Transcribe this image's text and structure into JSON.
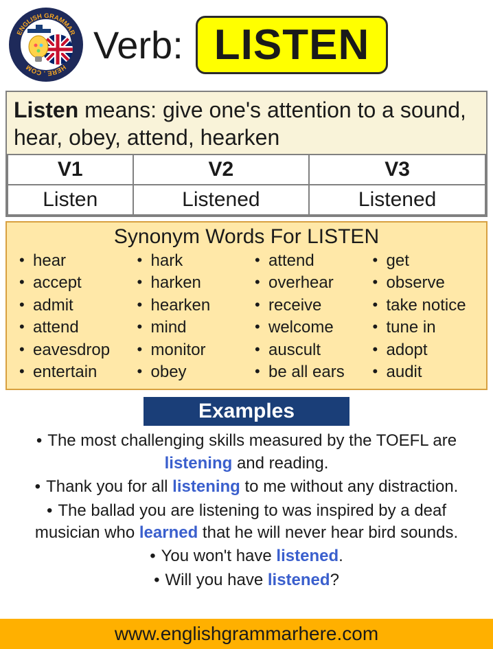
{
  "colors": {
    "page_bg": "#ffffff",
    "verb_box_bg": "#ffff00",
    "verb_box_border": "#2a2a2a",
    "def_box_bg": "#f9f3d9",
    "def_box_border": "#808080",
    "syn_box_bg": "#ffe8a8",
    "syn_box_border": "#d8a040",
    "examples_header_bg": "#1a3e78",
    "examples_header_text": "#ffffff",
    "highlight_text": "#3a5fcd",
    "footer_bg": "#ffb000",
    "text": "#1a1a1a"
  },
  "typography": {
    "font_family": "Arial",
    "verb_label_size": 56,
    "verb_word_size": 62,
    "definition_size": 32,
    "forms_size": 30,
    "synonyms_title_size": 30,
    "synonym_item_size": 24,
    "examples_header_size": 30,
    "example_item_size": 24,
    "footer_size": 28
  },
  "logo": {
    "text_top": "English Grammar",
    "text_bottom": "Here.Com",
    "ring_color": "#1e2a5a",
    "ring_text_color": "#f5a623",
    "flag_bg": "#012169",
    "flag_red": "#C8102E",
    "flag_white": "#ffffff",
    "bulb_yellow": "#ffd24a",
    "cap_color": "#1a3e78"
  },
  "header": {
    "verb_label": "Verb:",
    "verb_word": "LISTEN"
  },
  "definition": {
    "word": "Listen",
    "connector": " means: ",
    "text": "give one's attention to a sound, hear, obey, attend, hearken"
  },
  "forms": {
    "columns": [
      "V1",
      "V2",
      "V3"
    ],
    "values": [
      "Listen",
      "Listened",
      "Listened"
    ]
  },
  "synonyms": {
    "title_prefix": "Synonym Words For ",
    "title_word": "LISTEN",
    "columns": [
      [
        "hear",
        "accept",
        "admit",
        "attend",
        "eavesdrop",
        "entertain"
      ],
      [
        "hark",
        "harken",
        "hearken",
        "mind",
        "monitor",
        "obey"
      ],
      [
        "attend",
        "overhear",
        "receive",
        "welcome",
        "auscult",
        "be all ears"
      ],
      [
        "get",
        "observe",
        "take notice",
        "tune in",
        "adopt",
        "audit"
      ]
    ]
  },
  "examples": {
    "header": "Examples",
    "items": [
      {
        "parts": [
          "The most challenging skills measured by the TOEFL are ",
          {
            "hl": "listening"
          },
          " and reading."
        ]
      },
      {
        "parts": [
          "Thank you for all ",
          {
            "hl": "listening"
          },
          " to me without any distraction."
        ]
      },
      {
        "parts": [
          "The ballad you are listening to was inspired by a deaf musician who ",
          {
            "hl": "learned"
          },
          " that he will never hear bird sounds."
        ]
      },
      {
        "parts": [
          "You won't have ",
          {
            "hl": "listened"
          },
          "."
        ]
      },
      {
        "parts": [
          "Will you have ",
          {
            "hl": "listened"
          },
          "?"
        ]
      }
    ]
  },
  "footer": {
    "url": "www.englishgrammarhere.com"
  }
}
